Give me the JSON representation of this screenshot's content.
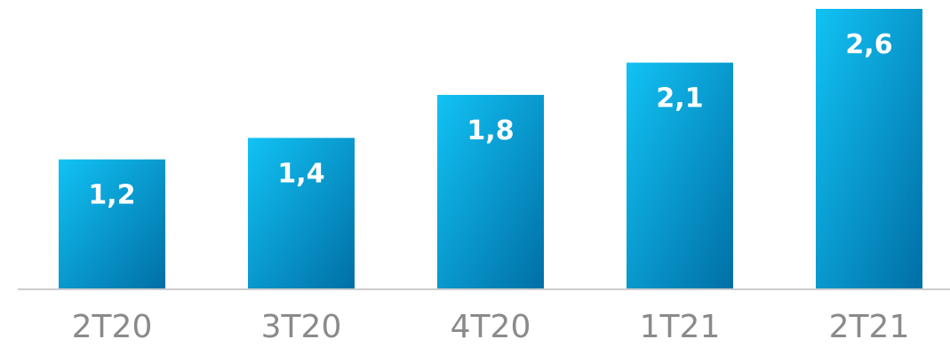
{
  "chart_data": {
    "type": "bar",
    "categories": [
      "2T20",
      "3T20",
      "4T20",
      "1T21",
      "2T21"
    ],
    "values": [
      1.2,
      1.4,
      1.8,
      2.1,
      2.6
    ],
    "value_labels": [
      "1,2",
      "1,4",
      "1,8",
      "2,1",
      "2,6"
    ],
    "title": "",
    "xlabel": "",
    "ylabel": "",
    "ylim": [
      0,
      2.6
    ],
    "grid": false,
    "legend": "none",
    "colors": {
      "bar_top": "#12c2f4",
      "bar_bottom": "#006fa6",
      "baseline": "#cccccc",
      "tick_text": "#8a8a8a"
    }
  }
}
